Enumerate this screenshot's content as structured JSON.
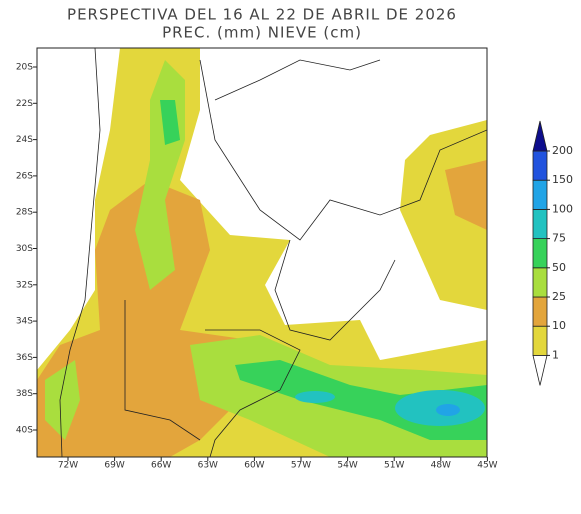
{
  "title": [
    "PERSPECTIVA DEL 16 AL 22 DE ABRIL DE 2026",
    "PREC. (mm) NIEVE (cm)"
  ],
  "map": {
    "lat_labels": [
      "20S",
      "22S",
      "24S",
      "26S",
      "28S",
      "30S",
      "32S",
      "34S",
      "36S",
      "38S",
      "40S"
    ],
    "lon_labels": [
      "72W",
      "69W",
      "66W",
      "63W",
      "60W",
      "57W",
      "54W",
      "51W",
      "48W",
      "45W"
    ]
  },
  "legend": {
    "levels": [
      1,
      10,
      25,
      50,
      75,
      100,
      150,
      200
    ],
    "colors": [
      "#ffffff",
      "#e3d73c",
      "#e3a53c",
      "#a9de3e",
      "#37d25a",
      "#22c2c0",
      "#21a4e6",
      "#2153de",
      "#0d0d8c"
    ]
  }
}
